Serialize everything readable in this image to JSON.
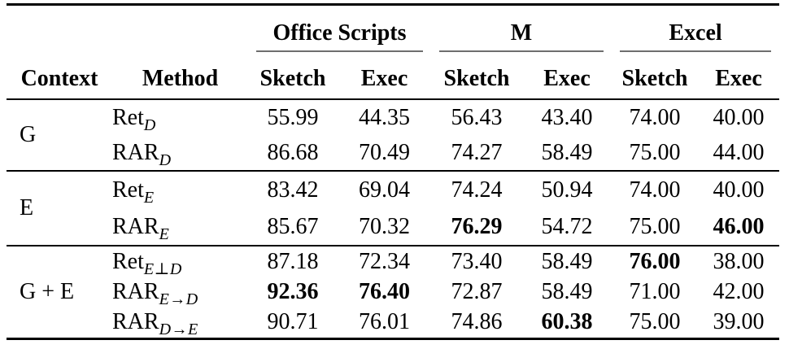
{
  "table": {
    "header": {
      "context": "Context",
      "method": "Method",
      "sketch": "Sketch",
      "exec": "Exec",
      "groups": [
        "Office Scripts",
        "M",
        "Excel"
      ]
    },
    "style": {
      "rule_color": "#000000",
      "cmidrule_color": "#6e6e6e",
      "text_color": "#000000",
      "background": "#ffffff"
    },
    "chart_like_note": "7 data rows, 6 numeric columns (Sketch/Exec per group)",
    "sections": [
      {
        "context": "G",
        "rows": [
          {
            "method": {
              "base": "Ret",
              "sub": "D"
            },
            "cells": [
              {
                "v": "55.99",
                "bold": false
              },
              {
                "v": "44.35",
                "bold": false
              },
              {
                "v": "56.43",
                "bold": false
              },
              {
                "v": "43.40",
                "bold": false
              },
              {
                "v": "74.00",
                "bold": false
              },
              {
                "v": "40.00",
                "bold": false
              }
            ]
          },
          {
            "method": {
              "base": "RAR",
              "sub": "D"
            },
            "cells": [
              {
                "v": "86.68",
                "bold": false
              },
              {
                "v": "70.49",
                "bold": false
              },
              {
                "v": "74.27",
                "bold": false
              },
              {
                "v": "58.49",
                "bold": false
              },
              {
                "v": "75.00",
                "bold": false
              },
              {
                "v": "44.00",
                "bold": false
              }
            ]
          }
        ]
      },
      {
        "context": "E",
        "rows": [
          {
            "method": {
              "base": "Ret",
              "sub": "E"
            },
            "cells": [
              {
                "v": "83.42",
                "bold": false
              },
              {
                "v": "69.04",
                "bold": false
              },
              {
                "v": "74.24",
                "bold": false
              },
              {
                "v": "50.94",
                "bold": false
              },
              {
                "v": "74.00",
                "bold": false
              },
              {
                "v": "40.00",
                "bold": false
              }
            ]
          },
          {
            "method": {
              "base": "RAR",
              "sub": "E"
            },
            "cells": [
              {
                "v": "85.67",
                "bold": false
              },
              {
                "v": "70.32",
                "bold": false
              },
              {
                "v": "76.29",
                "bold": true
              },
              {
                "v": "54.72",
                "bold": false
              },
              {
                "v": "75.00",
                "bold": false
              },
              {
                "v": "46.00",
                "bold": true
              }
            ]
          }
        ]
      },
      {
        "context": "G + E",
        "rows": [
          {
            "method": {
              "base": "Ret",
              "sub": "E⊥D"
            },
            "cells": [
              {
                "v": "87.18",
                "bold": false
              },
              {
                "v": "72.34",
                "bold": false
              },
              {
                "v": "73.40",
                "bold": false
              },
              {
                "v": "58.49",
                "bold": false
              },
              {
                "v": "76.00",
                "bold": true
              },
              {
                "v": "38.00",
                "bold": false
              }
            ]
          },
          {
            "method": {
              "base": "RAR",
              "sub": "E→D"
            },
            "cells": [
              {
                "v": "92.36",
                "bold": true
              },
              {
                "v": "76.40",
                "bold": true
              },
              {
                "v": "72.87",
                "bold": false
              },
              {
                "v": "58.49",
                "bold": false
              },
              {
                "v": "71.00",
                "bold": false
              },
              {
                "v": "42.00",
                "bold": false
              }
            ]
          },
          {
            "method": {
              "base": "RAR",
              "sub": "D→E"
            },
            "cells": [
              {
                "v": "90.71",
                "bold": false
              },
              {
                "v": "76.01",
                "bold": false
              },
              {
                "v": "74.86",
                "bold": false
              },
              {
                "v": "60.38",
                "bold": true
              },
              {
                "v": "75.00",
                "bold": false
              },
              {
                "v": "39.00",
                "bold": false
              }
            ]
          }
        ]
      }
    ]
  }
}
